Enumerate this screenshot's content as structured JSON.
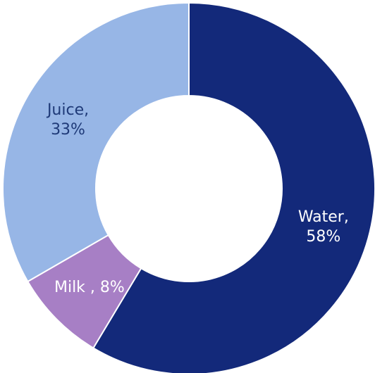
{
  "chart_data": {
    "type": "pie",
    "variant": "donut",
    "slices": [
      {
        "name": "Water",
        "value": 58,
        "label_lines": [
          "Water,",
          "58%"
        ],
        "color": "#13297a",
        "label_color": "#ffffff"
      },
      {
        "name": "Milk",
        "value": 8,
        "label_lines": [
          "Milk , 8%"
        ],
        "color": "#a77fc5",
        "label_color": "#ffffff"
      },
      {
        "name": "Juice",
        "value": 33,
        "label_lines": [
          "Juice,",
          "33%"
        ],
        "color": "#97b6e6",
        "label_color": "#1f3a78"
      }
    ],
    "start_angle": "12 o'clock",
    "direction": "clockwise",
    "legend": "none"
  },
  "colors": {
    "background": "#ffffff",
    "separator": "#ffffff"
  }
}
